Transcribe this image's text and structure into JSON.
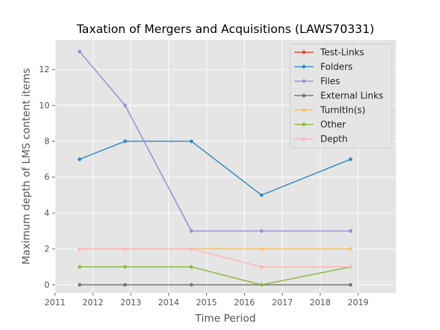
{
  "chart_data": {
    "type": "line",
    "title": "Taxation of Mergers and Acquisitions (LAWS70331)",
    "xlabel": "Time Period",
    "ylabel": "Maximum depth of LMS content items",
    "xlim": [
      2011.0,
      2020.0
    ],
    "ylim": [
      -0.45,
      13.65
    ],
    "xticks": [
      2011,
      2012,
      2013,
      2014,
      2015,
      2016,
      2017,
      2018,
      2019
    ],
    "yticks": [
      0,
      2,
      4,
      6,
      8,
      10,
      12
    ],
    "x": [
      2011.65,
      2012.85,
      2014.6,
      2016.45,
      2018.8
    ],
    "grid": true,
    "legend_position": "top-right",
    "series": [
      {
        "name": "Test-Links",
        "color": "#E24A33",
        "values": [
          null,
          null,
          null,
          null,
          null
        ]
      },
      {
        "name": "Folders",
        "color": "#348ABD",
        "values": [
          7,
          8,
          8,
          5,
          7
        ]
      },
      {
        "name": "Files",
        "color": "#988ED5",
        "values": [
          13,
          10,
          3,
          3,
          3
        ]
      },
      {
        "name": "External Links",
        "color": "#777777",
        "values": [
          0,
          0,
          0,
          0,
          0
        ]
      },
      {
        "name": "TurnItIn(s)",
        "color": "#FBC15E",
        "values": [
          2,
          2,
          2,
          2,
          2
        ]
      },
      {
        "name": "Other",
        "color": "#8EBA42",
        "values": [
          1,
          1,
          1,
          0,
          1
        ]
      },
      {
        "name": "Depth",
        "color": "#FFB5B8",
        "values": [
          2,
          2,
          2,
          1,
          1
        ]
      }
    ]
  }
}
